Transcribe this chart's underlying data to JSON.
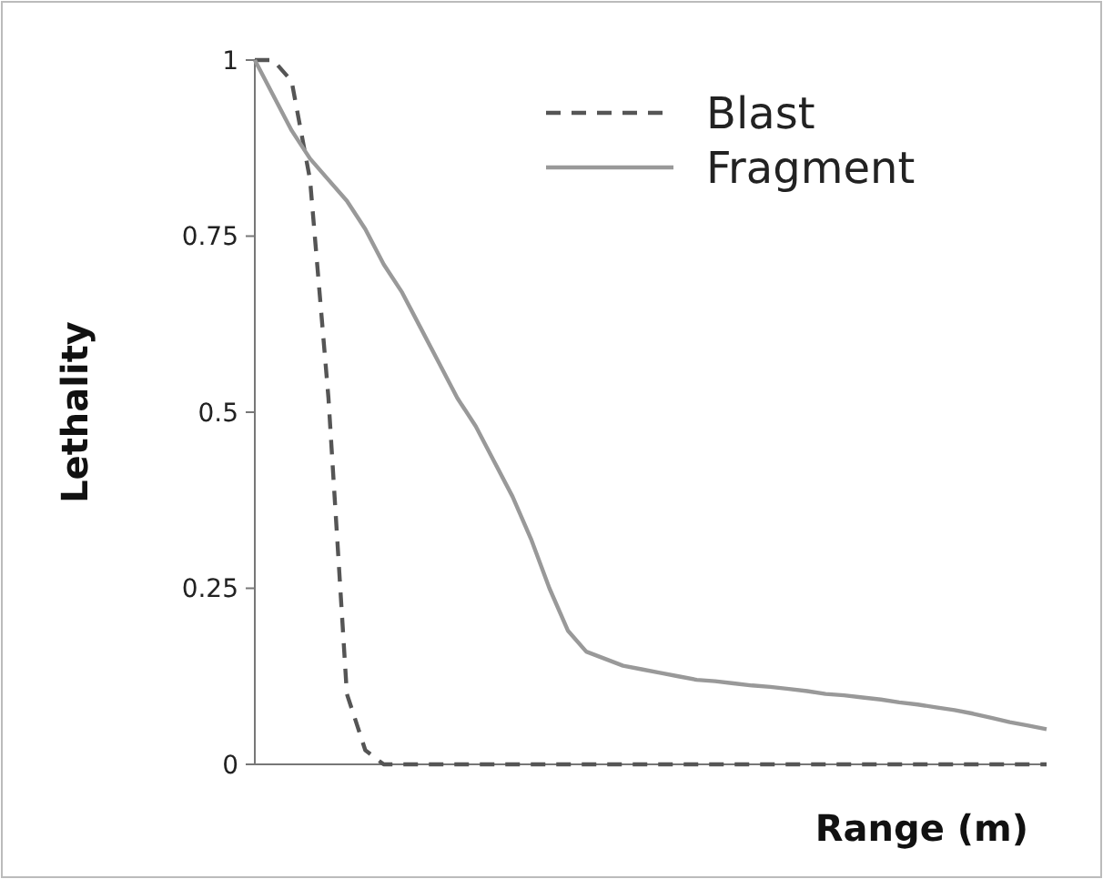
{
  "chart_data": {
    "type": "line",
    "xlabel": "Range (m)",
    "ylabel": "Lethality",
    "categories": [
      null,
      null,
      null,
      null,
      null,
      null,
      null,
      null,
      null,
      null,
      null,
      null,
      null,
      null,
      null,
      null,
      null,
      null,
      null,
      null,
      null,
      null,
      null,
      null,
      null,
      null,
      null,
      null,
      null,
      null,
      null,
      null,
      null,
      null,
      null,
      null,
      null,
      null,
      null,
      null,
      null,
      null,
      null,
      null
    ],
    "series": [
      {
        "name": "Blast",
        "color": "#555555",
        "line_style": "dashed",
        "values": [
          1,
          1,
          0.97,
          0.83,
          0.52,
          0.1,
          0.02,
          0,
          0,
          0,
          0,
          0,
          0,
          0,
          0,
          0,
          0,
          0,
          0,
          0,
          0,
          0,
          0,
          0,
          0,
          0,
          0,
          0,
          0,
          0,
          0,
          0,
          0,
          0,
          0,
          0,
          0,
          0,
          0,
          0,
          0,
          0,
          0,
          0
        ]
      },
      {
        "name": "Fragment",
        "color": "#999999",
        "line_style": "solid",
        "values": [
          1,
          0.95,
          0.9,
          0.86,
          0.83,
          0.8,
          0.76,
          0.71,
          0.67,
          0.62,
          0.57,
          0.52,
          0.48,
          0.43,
          0.38,
          0.32,
          0.25,
          0.19,
          0.16,
          0.15,
          0.14,
          0.135,
          0.13,
          0.125,
          0.12,
          0.118,
          0.115,
          0.112,
          0.11,
          0.107,
          0.104,
          0.1,
          0.098,
          0.095,
          0.092,
          0.088,
          0.085,
          0.081,
          0.077,
          0.072,
          0.066,
          0.06,
          0.055,
          0.05
        ]
      }
    ],
    "ylim": [
      0,
      1
    ],
    "yticks": [
      0,
      {
        "value": 0.25,
        "label": "0.25"
      },
      {
        "value": 0.5,
        "label": "0.5"
      },
      {
        "value": 0.75,
        "label": "0.75"
      },
      1
    ],
    "tick_labels": "y",
    "grid": false,
    "legend": "top right"
  }
}
